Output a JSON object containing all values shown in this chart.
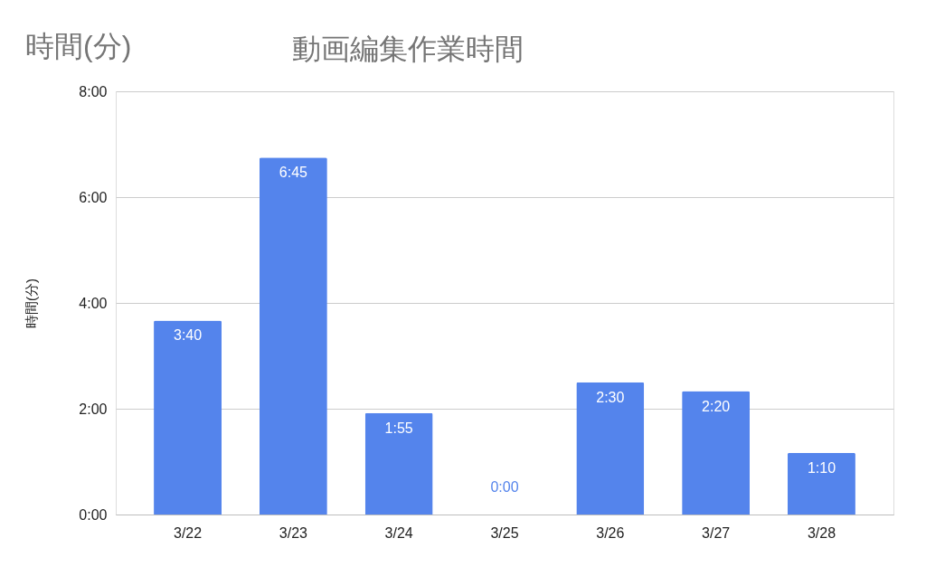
{
  "chart_data": {
    "type": "bar",
    "title": "動画編集作業時間",
    "ylabel": "時間(分)",
    "annotations": [
      "時間(分)"
    ],
    "categories": [
      "3/22",
      "3/23",
      "3/24",
      "3/25",
      "3/26",
      "3/27",
      "3/28"
    ],
    "series": [
      {
        "color": "#5484ec",
        "values": [
          3.6667,
          6.75,
          1.9167,
          0,
          2.5,
          2.3333,
          1.1667
        ],
        "value_labels": [
          "3:40",
          "6:45",
          "1:55",
          "0:00",
          "2:30",
          "2:20",
          "1:10"
        ]
      }
    ],
    "ylim": [
      0,
      8
    ],
    "yticks": [
      {
        "value": 0,
        "label": "0:00"
      },
      {
        "value": 2,
        "label": "2:00"
      },
      {
        "value": 4,
        "label": "4:00"
      },
      {
        "value": 6,
        "label": "6:00"
      },
      {
        "value": 8,
        "label": "8:00"
      }
    ],
    "grid": "y"
  }
}
